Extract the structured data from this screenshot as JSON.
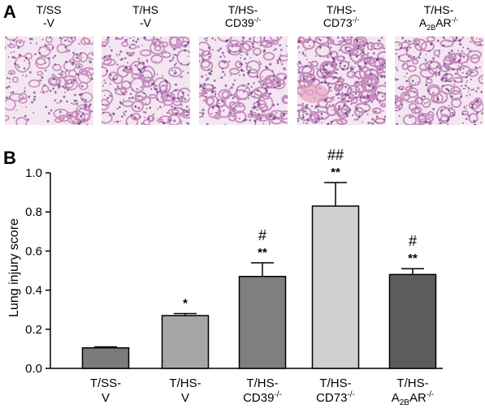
{
  "panel_a": {
    "letter": "A",
    "images": [
      {
        "label_1": "T/SS",
        "label_2": "-V",
        "sup": "",
        "sub": "",
        "suffix": "",
        "density": 0.35
      },
      {
        "label_1": "T/HS",
        "label_2": "-V",
        "sup": "",
        "sub": "",
        "suffix": "",
        "density": 0.55
      },
      {
        "label_1": "T/HS-",
        "label_2": "CD39",
        "sup": "-/-",
        "sub": "",
        "suffix": "",
        "density": 0.6
      },
      {
        "label_1": "T/HS-",
        "label_2": "CD73",
        "sup": "-/-",
        "sub": "",
        "suffix": "",
        "density": 0.9
      },
      {
        "label_1": "T/HS-",
        "label_2": "A",
        "sup": "-/-",
        "sub": "2B",
        "suffix": "AR",
        "density": 0.6
      }
    ]
  },
  "panel_b": {
    "letter": "B"
  },
  "chart_data": {
    "type": "bar",
    "title": "",
    "ylabel": "Lung injury score",
    "xlabel": "",
    "ylim": [
      0,
      1.0
    ],
    "yticks": [
      "0.0",
      "0.2",
      "0.4",
      "0.6",
      "0.8",
      "1.0"
    ],
    "categories": [
      {
        "line1": "T/SS-",
        "line2": "V",
        "sup": "",
        "sub": "",
        "suffix": ""
      },
      {
        "line1": "T/HS-",
        "line2": "V",
        "sup": "",
        "sub": "",
        "suffix": ""
      },
      {
        "line1": "T/HS-",
        "line2": "CD39",
        "sup": "-/-",
        "sub": "",
        "suffix": ""
      },
      {
        "line1": "T/HS-",
        "line2": "CD73",
        "sup": "-/-",
        "sub": "",
        "suffix": ""
      },
      {
        "line1": "T/HS-",
        "line2": "A",
        "sup": "-/-",
        "sub": "2B",
        "suffix": "AR"
      }
    ],
    "values": [
      0.105,
      0.27,
      0.47,
      0.83,
      0.48
    ],
    "errors": [
      0.005,
      0.01,
      0.07,
      0.12,
      0.03
    ],
    "colors": [
      "#7b7b7b",
      "#a6a6a6",
      "#7f7f7f",
      "#d0d0d0",
      "#5c5c5c"
    ],
    "significance": [
      "",
      "*",
      "**",
      "**",
      "**"
    ],
    "significance_vs_hs": [
      "",
      "",
      "#",
      "##",
      "#"
    ]
  }
}
